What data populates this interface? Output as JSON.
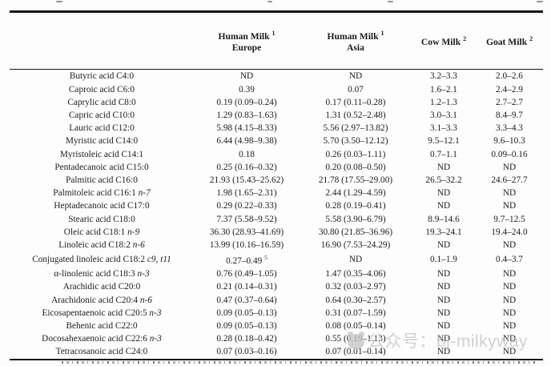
{
  "header": {
    "columns": [
      {
        "title": "",
        "sup": "",
        "subtitle": ""
      },
      {
        "title": "Human Milk",
        "sup": "1",
        "subtitle": "Europe"
      },
      {
        "title": "Human Milk",
        "sup": "1",
        "subtitle": "Asia"
      },
      {
        "title": "Cow Milk",
        "sup": "2",
        "subtitle": ""
      },
      {
        "title": "Goat Milk",
        "sup": "2",
        "subtitle": ""
      }
    ]
  },
  "table": {
    "rows": [
      {
        "main": "Butyric acid C4:0",
        "italic": "",
        "values": [
          "ND",
          "ND",
          "3.2–3.3",
          "2.0–2.6"
        ]
      },
      {
        "main": "Caproic acid C6:0",
        "italic": "",
        "values": [
          "0.39",
          "0.07",
          "1.6–2.1",
          "2.4–2.9"
        ]
      },
      {
        "main": "Caprylic acid C8:0",
        "italic": "",
        "values": [
          "0.19 (0.09–0.24)",
          "0.17 (0.11–0.28)",
          "1.2–1.3",
          "2.7–2.7"
        ]
      },
      {
        "main": "Capric acid C10:0",
        "italic": "",
        "values": [
          "1.29 (0.83–1.63)",
          "1.31 (0.52–2.48)",
          "3.0–3.1",
          "8.4–9.7"
        ]
      },
      {
        "main": "Lauric acid C12:0",
        "italic": "",
        "values": [
          "5.98 (4.15–8.33)",
          "5.56 (2.97–13.82)",
          "3.1–3.3",
          "3.3–4.3"
        ]
      },
      {
        "main": "Myristic acid C14:0",
        "italic": "",
        "values": [
          "6.44 (4.98–9.38)",
          "5.70 (3.50–12.12)",
          "9.5–12.1",
          "9.6–10.3"
        ]
      },
      {
        "main": "Myristoleic acid C14:1",
        "italic": "",
        "values": [
          "0.18",
          "0.26 (0.03–1.11)",
          "0.7–1.1",
          "0.09–0.16"
        ]
      },
      {
        "main": "Pentadecanoic acid C15:0",
        "italic": "",
        "values": [
          "0.25 (0.16–0.32)",
          "0.20 (0.08–0.50)",
          "ND",
          "ND"
        ]
      },
      {
        "main": "Palmitic acid C16:0",
        "italic": "",
        "values": [
          "21.93 (15.43–25.62)",
          "21.78 (17.55–29.00)",
          "26.5–32.2",
          "24.6–27.7"
        ]
      },
      {
        "main": "Palmitoleic acid C16:1",
        "italic": "n-7",
        "values": [
          "1.98 (1.65–2.31)",
          "2.44 (1.29–4.59)",
          "ND",
          "ND"
        ]
      },
      {
        "main": "Heptadecanoic acid C17:0",
        "italic": "",
        "values": [
          "0.29 (0.22–0.33)",
          "0.28 (0.19–0.41)",
          "ND",
          "ND"
        ]
      },
      {
        "main": "Stearic acid C18:0",
        "italic": "",
        "values": [
          "7.37 (5.58–9.52)",
          "5.58 (3.90–6.79)",
          "8.9–14.6",
          "9.7–12.5"
        ]
      },
      {
        "main": "Oleic acid C18:1",
        "italic": "n-9",
        "values": [
          "36.30 (28.93–41.69)",
          "30.80 (21.85–36.96)",
          "19.3–24.1",
          "19.4–24.0"
        ]
      },
      {
        "main": "Linoleic acid C18:2",
        "italic": "n-6",
        "values": [
          "13.99 (10.16–16.59)",
          "16.90 (7.53–24.29)",
          "ND",
          "ND"
        ]
      },
      {
        "main": "Conjugated linoleic acid C18:2",
        "italic": "c9, t11",
        "values": [
          {
            "text": "0.27–0.49",
            "sup": "5"
          },
          "ND",
          "0.1–1.9",
          "0.4–3.7"
        ]
      },
      {
        "main": "α-linolenic acid C18:3",
        "italic": "n-3",
        "values": [
          "0.76 (0.49–1.05)",
          "1.47 (0.35–4.06)",
          "ND",
          "ND"
        ]
      },
      {
        "main": "Arachidic acid C20:0",
        "italic": "",
        "values": [
          "0.21 (0.14–0.31)",
          "0.32 (0.03–2.97)",
          "ND",
          "ND"
        ]
      },
      {
        "main": "Arachidonic acid C20:4",
        "italic": "n-6",
        "values": [
          "0.47 (0.37–0.64)",
          "0.64 (0.30–2.57)",
          "ND",
          "ND"
        ]
      },
      {
        "main": "Eicosapentaenoic acid C20:5",
        "italic": "n-3",
        "values": [
          "0.09 (0.05–0.13)",
          "0.31 (0.07–1.59)",
          "ND",
          "ND"
        ]
      },
      {
        "main": "Behenic acid C22:0",
        "italic": "",
        "values": [
          "0.09 (0.05–0.13)",
          "0.08 (0.05–0.14)",
          "ND",
          "ND"
        ]
      },
      {
        "main": "Docosahexaenoic acid C22:6",
        "italic": "n-3",
        "values": [
          "0.28 (0.18–0.42)",
          "0.55 (0.19–1.13)",
          "ND",
          "ND"
        ]
      },
      {
        "main": "Tetracosanoic acid C24:0",
        "italic": "",
        "values": [
          "0.07 (0.03–0.16)",
          "0.07 (0.01–0.14)",
          "ND",
          "ND"
        ]
      }
    ]
  },
  "watermark": {
    "text": "公众号：bj-milkyway",
    "color": "#c6c6c6"
  }
}
